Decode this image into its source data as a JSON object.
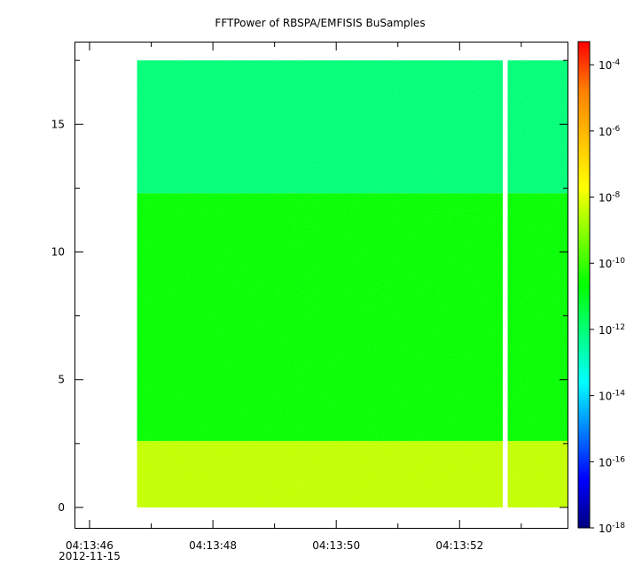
{
  "chart_data": {
    "type": "heatmap",
    "title": "FFTPower of RBSPA/EMFISIS  BuSamples",
    "xlabel": "",
    "ylabel": "",
    "x_axis": {
      "ticks": [
        {
          "time": "04:13:46",
          "date": "2012-11-15",
          "t": 0
        },
        {
          "time": "04:13:48",
          "date": "",
          "t": 2
        },
        {
          "time": "04:13:50",
          "date": "",
          "t": 4
        },
        {
          "time": "04:13:52",
          "date": "",
          "t": 6
        }
      ],
      "minor_ticks": [
        1,
        3,
        5,
        7
      ],
      "range_seconds": [
        -0.23,
        7.75
      ]
    },
    "y_axis": {
      "ticks": [
        0,
        5,
        10,
        15
      ],
      "minor_ticks": [
        2.5,
        7.5,
        12.5,
        17.5
      ],
      "range": [
        -0.8,
        18.2
      ]
    },
    "data_extent": {
      "t_start": 0.77,
      "t_end": 7.75,
      "y_min": 0,
      "y_max": 17.5
    },
    "gaps": [
      {
        "t_start": 6.7,
        "t_end": 6.78
      }
    ],
    "bands": [
      {
        "y_from": 0,
        "y_to": 2.6,
        "log10_power": -8.4
      },
      {
        "y_from": 2.6,
        "y_to": 12.3,
        "log10_power": -10.6
      },
      {
        "y_from": 12.3,
        "y_to": 17.5,
        "log10_power": -12.0
      }
    ],
    "colorbar": {
      "scale": "log",
      "range_log10": [
        -18,
        -3.3
      ],
      "tick_exponents": [
        -4,
        -6,
        -8,
        -10,
        -12,
        -14,
        -16,
        -18
      ],
      "tick_base": "10",
      "colors": [
        "#000080",
        "#0000ff",
        "#0080ff",
        "#00ffff",
        "#00ff80",
        "#00ff00",
        "#80ff00",
        "#ffff00",
        "#ffc000",
        "#ff8000",
        "#ff0000"
      ]
    }
  }
}
